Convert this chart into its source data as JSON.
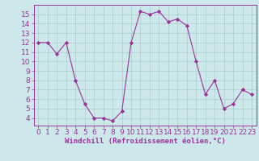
{
  "x": [
    0,
    1,
    2,
    3,
    4,
    5,
    6,
    7,
    8,
    9,
    10,
    11,
    12,
    13,
    14,
    15,
    16,
    17,
    18,
    19,
    20,
    21,
    22,
    23
  ],
  "y": [
    12,
    12,
    10.8,
    12,
    8,
    5.5,
    4,
    4,
    3.7,
    4.7,
    12,
    15.3,
    15,
    15.3,
    14.2,
    14.5,
    13.8,
    10,
    6.5,
    8,
    5,
    5.5,
    7,
    6.5
  ],
  "line_color": "#993399",
  "marker": "D",
  "marker_size": 2.2,
  "bg_color": "#cce8ea",
  "grid_color": "#aacccc",
  "xlabel": "Windchill (Refroidissement éolien,°C)",
  "xlabel_color": "#993399",
  "xlabel_fontsize": 6.5,
  "tick_color": "#993399",
  "tick_fontsize": 6.5,
  "ylim": [
    3.2,
    16.0
  ],
  "yticks": [
    4,
    5,
    6,
    7,
    8,
    9,
    10,
    11,
    12,
    13,
    14,
    15
  ],
  "xlim": [
    -0.5,
    23.5
  ],
  "xticks": [
    0,
    1,
    2,
    3,
    4,
    5,
    6,
    7,
    8,
    9,
    10,
    11,
    12,
    13,
    14,
    15,
    16,
    17,
    18,
    19,
    20,
    21,
    22,
    23
  ]
}
